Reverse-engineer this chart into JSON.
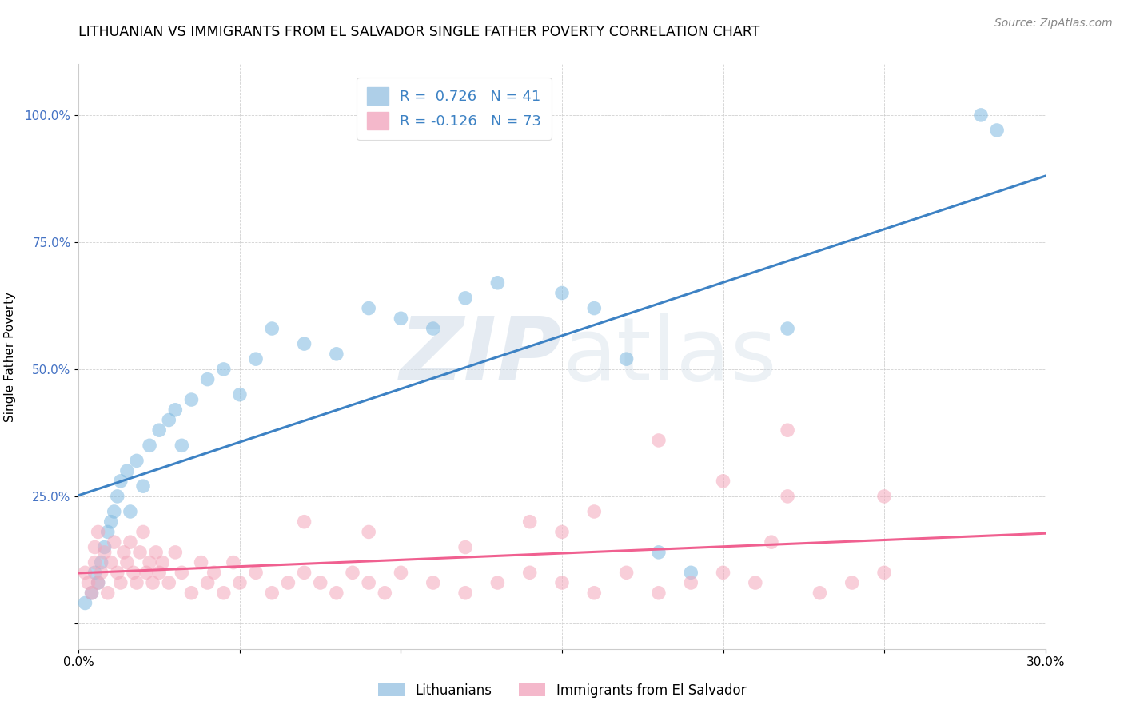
{
  "title": "LITHUANIAN VS IMMIGRANTS FROM EL SALVADOR SINGLE FATHER POVERTY CORRELATION CHART",
  "source": "Source: ZipAtlas.com",
  "ylabel": "Single Father Poverty",
  "xlim": [
    0.0,
    0.3
  ],
  "ylim": [
    -0.05,
    1.1
  ],
  "xtick_positions": [
    0.0,
    0.05,
    0.1,
    0.15,
    0.2,
    0.25,
    0.3
  ],
  "xticklabels": [
    "0.0%",
    "",
    "",
    "",
    "",
    "",
    "30.0%"
  ],
  "ytick_positions": [
    0.0,
    0.25,
    0.5,
    0.75,
    1.0
  ],
  "yticklabels": [
    "",
    "25.0%",
    "50.0%",
    "75.0%",
    "100.0%"
  ],
  "blue_color": "#7fb9e0",
  "pink_color": "#f4a7bb",
  "blue_line_color": "#3d82c4",
  "pink_line_color": "#f06090",
  "background_color": "#ffffff",
  "title_fontsize": 12.5,
  "label_fontsize": 11,
  "tick_fontsize": 11,
  "source_fontsize": 10,
  "tick_color_y": "#4472C4",
  "blue_x": [
    0.002,
    0.004,
    0.005,
    0.006,
    0.007,
    0.008,
    0.009,
    0.01,
    0.011,
    0.012,
    0.013,
    0.015,
    0.016,
    0.018,
    0.02,
    0.022,
    0.025,
    0.028,
    0.03,
    0.032,
    0.035,
    0.04,
    0.045,
    0.05,
    0.055,
    0.06,
    0.07,
    0.08,
    0.09,
    0.1,
    0.11,
    0.12,
    0.13,
    0.15,
    0.16,
    0.17,
    0.18,
    0.19,
    0.22,
    0.28,
    0.285
  ],
  "blue_y": [
    0.04,
    0.06,
    0.1,
    0.08,
    0.12,
    0.15,
    0.18,
    0.2,
    0.22,
    0.25,
    0.28,
    0.3,
    0.22,
    0.32,
    0.27,
    0.35,
    0.38,
    0.4,
    0.42,
    0.35,
    0.44,
    0.48,
    0.5,
    0.45,
    0.52,
    0.58,
    0.55,
    0.53,
    0.62,
    0.6,
    0.58,
    0.64,
    0.67,
    0.65,
    0.62,
    0.52,
    0.14,
    0.1,
    0.58,
    1.0,
    0.97
  ],
  "pink_x": [
    0.002,
    0.003,
    0.004,
    0.005,
    0.005,
    0.006,
    0.006,
    0.007,
    0.008,
    0.009,
    0.01,
    0.011,
    0.012,
    0.013,
    0.014,
    0.015,
    0.016,
    0.017,
    0.018,
    0.019,
    0.02,
    0.021,
    0.022,
    0.023,
    0.024,
    0.025,
    0.026,
    0.028,
    0.03,
    0.032,
    0.035,
    0.038,
    0.04,
    0.042,
    0.045,
    0.048,
    0.05,
    0.055,
    0.06,
    0.065,
    0.07,
    0.075,
    0.08,
    0.085,
    0.09,
    0.095,
    0.1,
    0.11,
    0.12,
    0.13,
    0.14,
    0.15,
    0.16,
    0.17,
    0.18,
    0.19,
    0.2,
    0.21,
    0.215,
    0.22,
    0.23,
    0.24,
    0.25,
    0.14,
    0.15,
    0.16,
    0.2,
    0.22,
    0.25,
    0.18,
    0.12,
    0.09,
    0.07
  ],
  "pink_y": [
    0.1,
    0.08,
    0.06,
    0.12,
    0.15,
    0.08,
    0.18,
    0.1,
    0.14,
    0.06,
    0.12,
    0.16,
    0.1,
    0.08,
    0.14,
    0.12,
    0.16,
    0.1,
    0.08,
    0.14,
    0.18,
    0.1,
    0.12,
    0.08,
    0.14,
    0.1,
    0.12,
    0.08,
    0.14,
    0.1,
    0.06,
    0.12,
    0.08,
    0.1,
    0.06,
    0.12,
    0.08,
    0.1,
    0.06,
    0.08,
    0.1,
    0.08,
    0.06,
    0.1,
    0.08,
    0.06,
    0.1,
    0.08,
    0.06,
    0.08,
    0.1,
    0.08,
    0.06,
    0.1,
    0.06,
    0.08,
    0.1,
    0.08,
    0.16,
    0.25,
    0.06,
    0.08,
    0.1,
    0.2,
    0.18,
    0.22,
    0.28,
    0.38,
    0.25,
    0.36,
    0.15,
    0.18,
    0.2
  ]
}
